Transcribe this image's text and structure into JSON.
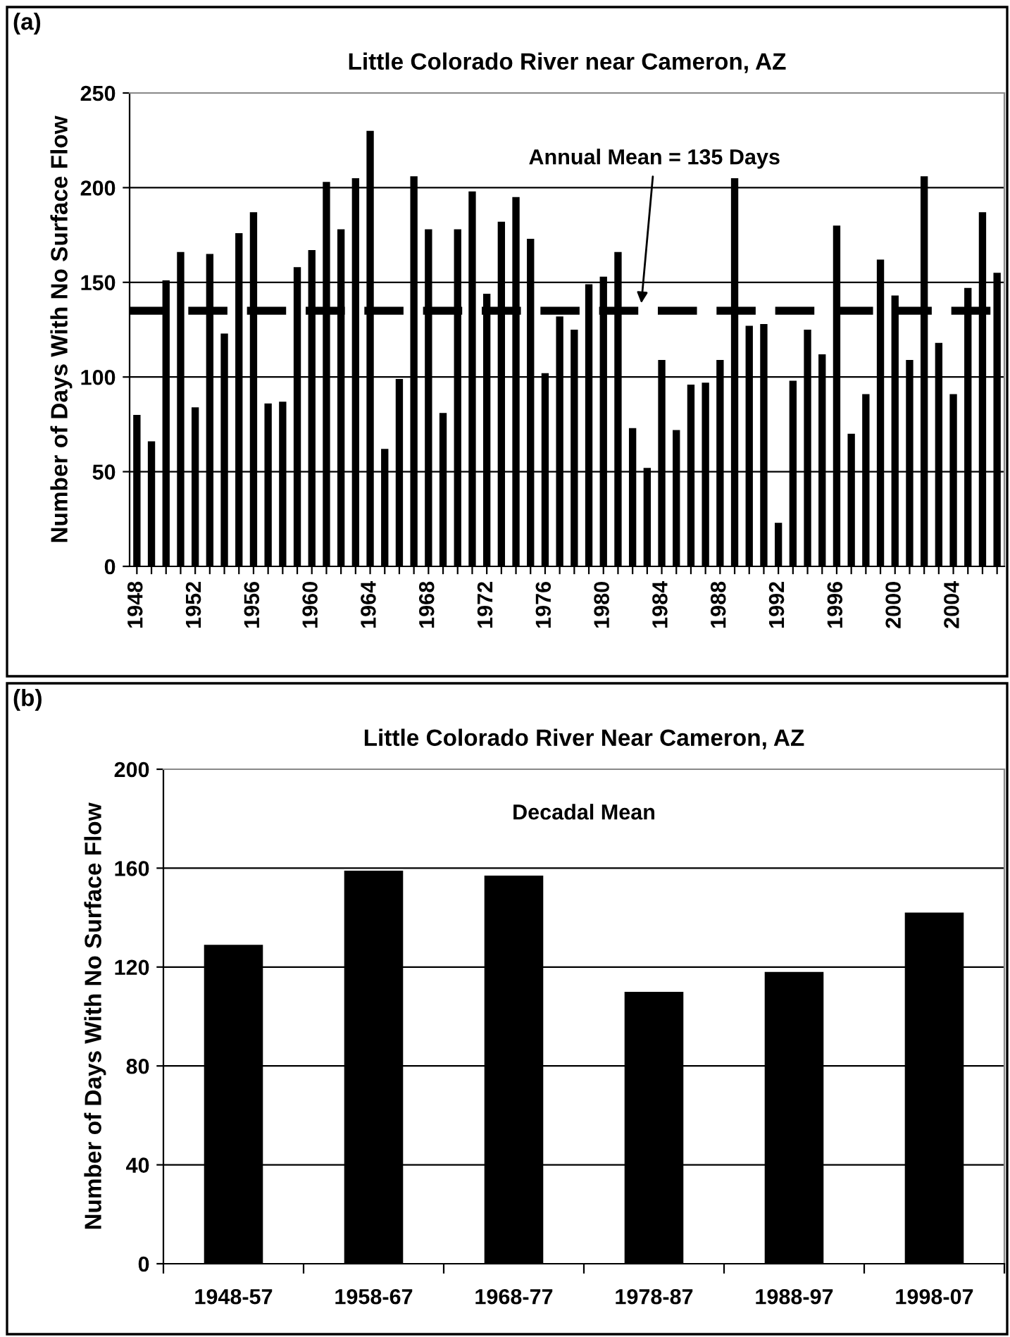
{
  "chart_data": [
    {
      "type": "bar",
      "title": "Little Colorado River near Cameron, AZ",
      "ylabel": "Number of Days With No Surface Flow",
      "categories": [
        "1948",
        null,
        null,
        null,
        "1952",
        null,
        null,
        null,
        "1956",
        null,
        null,
        null,
        "1960",
        null,
        null,
        null,
        "1964",
        null,
        null,
        null,
        "1968",
        null,
        null,
        null,
        "1972",
        null,
        null,
        null,
        "1976",
        null,
        null,
        null,
        "1980",
        null,
        null,
        null,
        "1984",
        null,
        null,
        null,
        "1988",
        null,
        null,
        null,
        "1992",
        null,
        null,
        null,
        "1996",
        null,
        null,
        null,
        "2000",
        null,
        null,
        null,
        "2004",
        null,
        null,
        null
      ],
      "values": [
        80,
        66,
        151,
        166,
        84,
        165,
        123,
        176,
        187,
        86,
        87,
        158,
        167,
        203,
        178,
        205,
        230,
        62,
        99,
        206,
        178,
        81,
        178,
        198,
        144,
        182,
        195,
        173,
        102,
        132,
        125,
        149,
        153,
        166,
        73,
        52,
        109,
        72,
        96,
        97,
        109,
        205,
        127,
        128,
        23,
        98,
        125,
        112,
        180,
        70,
        91,
        162,
        143,
        109,
        206,
        118,
        91,
        147,
        187,
        155
      ],
      "color": "#000000",
      "ylim": [
        0,
        250
      ],
      "yticks": [
        0,
        50,
        100,
        150,
        200,
        250
      ],
      "grid": "y",
      "ref_lines": [
        {
          "axis": "y",
          "value": 135,
          "label": "Annual Mean = 135 Days",
          "color": "#000000",
          "line_style": "dashed"
        }
      ],
      "annotations": [
        "(a)"
      ]
    },
    {
      "type": "bar",
      "title": "Little Colorado River Near Cameron, AZ",
      "ylabel": "Number of Days With No Surface Flow",
      "categories": [
        "1948-57",
        "1958-67",
        "1968-77",
        "1978-87",
        "1988-97",
        "1998-07"
      ],
      "values": [
        129,
        159,
        157,
        110,
        118,
        142
      ],
      "color": "#000000",
      "ylim": [
        0,
        200
      ],
      "yticks": [
        0,
        40,
        80,
        120,
        160,
        200
      ],
      "grid": "y",
      "annotations": [
        "(b)",
        "Decadal Mean"
      ]
    }
  ]
}
